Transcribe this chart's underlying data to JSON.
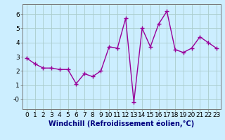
{
  "x": [
    0,
    1,
    2,
    3,
    4,
    5,
    6,
    7,
    8,
    9,
    10,
    11,
    12,
    13,
    14,
    15,
    16,
    17,
    18,
    19,
    20,
    21,
    22,
    23
  ],
  "y": [
    2.9,
    2.5,
    2.2,
    2.2,
    2.1,
    2.1,
    1.1,
    1.8,
    1.6,
    2.0,
    3.7,
    3.6,
    5.7,
    -0.2,
    5.0,
    3.7,
    5.3,
    6.2,
    3.5,
    3.3,
    3.6,
    4.4,
    4.0,
    3.6
  ],
  "line_color": "#990099",
  "marker": "+",
  "marker_size": 4,
  "background_color": "#cceeff",
  "grid_color": "#aacccc",
  "xlabel": "Windchill (Refroidissement éolien,°C)",
  "xlabel_fontsize": 7,
  "xtick_labels": [
    "0",
    "1",
    "2",
    "3",
    "4",
    "5",
    "6",
    "7",
    "8",
    "9",
    "10",
    "11",
    "12",
    "13",
    "14",
    "15",
    "16",
    "17",
    "18",
    "19",
    "20",
    "21",
    "22",
    "23"
  ],
  "ytick_labels": [
    "-0",
    "1",
    "2",
    "3",
    "4",
    "5",
    "6"
  ],
  "ytick_positions": [
    0,
    1,
    2,
    3,
    4,
    5,
    6
  ],
  "ylim": [
    -0.7,
    6.7
  ],
  "xlim": [
    -0.5,
    23.5
  ],
  "tick_fontsize": 6.5,
  "line_width": 1.0,
  "marker_edge_width": 1.0
}
